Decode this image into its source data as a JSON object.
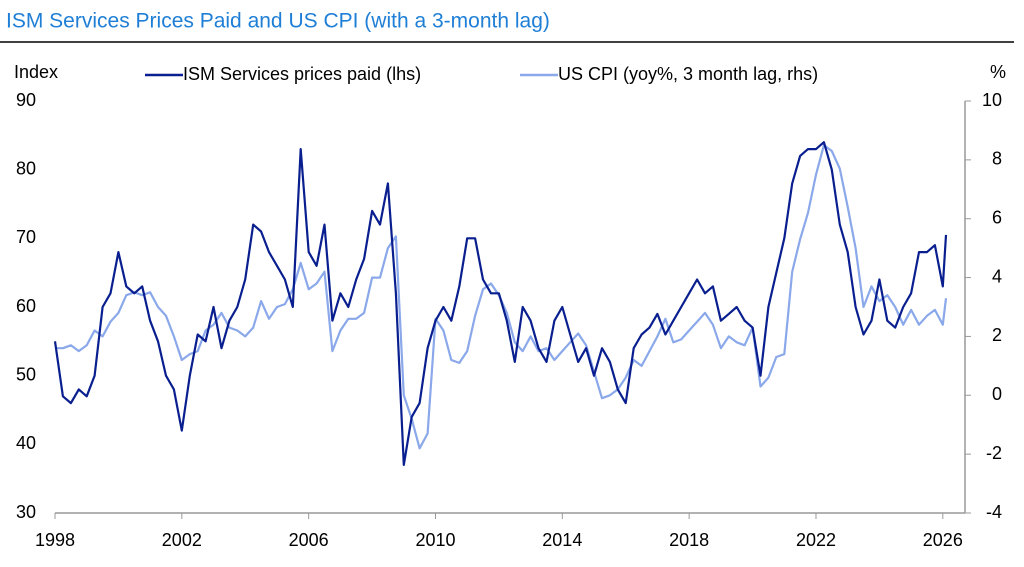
{
  "chart_data": {
    "type": "line",
    "title": "ISM Services Prices Paid and US CPI (with a 3-month lag)",
    "y_label": "Index",
    "y2_label": "%",
    "x": [
      1998,
      1998.25,
      1998.5,
      1998.75,
      1999,
      1999.25,
      1999.5,
      1999.75,
      2000,
      2000.25,
      2000.5,
      2000.75,
      2001,
      2001.25,
      2001.5,
      2001.75,
      2002,
      2002.25,
      2002.5,
      2002.75,
      2003,
      2003.25,
      2003.5,
      2003.75,
      2004,
      2004.25,
      2004.5,
      2004.75,
      2005,
      2005.25,
      2005.5,
      2005.75,
      2006,
      2006.25,
      2006.5,
      2006.75,
      2007,
      2007.25,
      2007.5,
      2007.75,
      2008,
      2008.25,
      2008.5,
      2008.75,
      2009,
      2009.25,
      2009.5,
      2009.75,
      2010,
      2010.25,
      2010.5,
      2010.75,
      2011,
      2011.25,
      2011.5,
      2011.75,
      2012,
      2012.25,
      2012.5,
      2012.75,
      2013,
      2013.25,
      2013.5,
      2013.75,
      2014,
      2014.25,
      2014.5,
      2014.75,
      2015,
      2015.25,
      2015.5,
      2015.75,
      2016,
      2016.25,
      2016.5,
      2016.75,
      2017,
      2017.25,
      2017.5,
      2017.75,
      2018,
      2018.25,
      2018.5,
      2018.75,
      2019,
      2019.25,
      2019.5,
      2019.75,
      2020,
      2020.25,
      2020.5,
      2020.75,
      2021,
      2021.25,
      2021.5,
      2021.75,
      2022,
      2022.25,
      2022.5,
      2022.75,
      2023,
      2023.25,
      2023.5,
      2023.75,
      2024,
      2024.25,
      2024.5,
      2024.75,
      2025,
      2025.25,
      2025.5,
      2025.75,
      2026,
      2026.1
    ],
    "series": [
      {
        "name": "ISM Services prices paid (lhs)",
        "color": "#0a1f8f",
        "axis": "y",
        "values": [
          55,
          47,
          46,
          48,
          47,
          50,
          60,
          62,
          68,
          63,
          62,
          63,
          58,
          55,
          50,
          48,
          42,
          50,
          56,
          55,
          60,
          54,
          58,
          60,
          64,
          72,
          71,
          68,
          66,
          64,
          60,
          83,
          68,
          66,
          72,
          58,
          62,
          60,
          64,
          67,
          74,
          72,
          78,
          62,
          37,
          44,
          46,
          54,
          58,
          60,
          58,
          63,
          70,
          70,
          64,
          62,
          62,
          58,
          52,
          60,
          58,
          54,
          52,
          58,
          60,
          56,
          52,
          54,
          50,
          54,
          52,
          48,
          46,
          54,
          56,
          57,
          59,
          56,
          58,
          60,
          62,
          64,
          62,
          63,
          58,
          59,
          60,
          58,
          57,
          50,
          60,
          65,
          70,
          78,
          82,
          83,
          83,
          84,
          80,
          72,
          68,
          60,
          56,
          58,
          64,
          58,
          57,
          60,
          62,
          68,
          68,
          69,
          63,
          70.5
        ]
      },
      {
        "name": "US CPI (yoy%, 3 month lag, rhs)",
        "color": "#8aa8ea",
        "axis": "y2",
        "values": [
          1.6,
          1.6,
          1.7,
          1.5,
          1.7,
          2.2,
          2.0,
          2.5,
          2.8,
          3.4,
          3.5,
          3.4,
          3.5,
          3.0,
          2.7,
          2.0,
          1.2,
          1.4,
          1.5,
          2.2,
          2.4,
          2.8,
          2.3,
          2.2,
          2.0,
          2.3,
          3.2,
          2.6,
          3.0,
          3.1,
          3.6,
          4.5,
          3.6,
          3.8,
          4.2,
          1.5,
          2.2,
          2.6,
          2.6,
          2.8,
          4.0,
          4.0,
          5.0,
          5.4,
          0.0,
          -0.8,
          -1.8,
          -1.3,
          2.6,
          2.2,
          1.2,
          1.1,
          1.5,
          2.7,
          3.6,
          3.8,
          3.4,
          2.8,
          1.8,
          1.5,
          2.0,
          1.5,
          1.6,
          1.2,
          1.5,
          1.8,
          2.1,
          1.7,
          0.8,
          -0.1,
          0.0,
          0.2,
          0.6,
          1.2,
          1.0,
          1.5,
          2.0,
          2.6,
          1.8,
          1.9,
          2.2,
          2.5,
          2.8,
          2.4,
          1.6,
          2.0,
          1.8,
          1.7,
          2.3,
          0.3,
          0.6,
          1.3,
          1.4,
          4.2,
          5.3,
          6.2,
          7.5,
          8.5,
          8.3,
          7.7,
          6.4,
          5.0,
          3.0,
          3.7,
          3.2,
          3.4,
          3.0,
          2.4,
          2.9,
          2.4,
          2.7,
          2.9,
          2.4,
          3.3
        ]
      }
    ],
    "xlim": [
      1998,
      2026.7
    ],
    "xticks": [
      1998,
      2002,
      2006,
      2010,
      2014,
      2018,
      2022,
      2026
    ],
    "ylim": [
      30,
      90
    ],
    "yticks": [
      30,
      40,
      50,
      60,
      70,
      80,
      90
    ],
    "y2lim": [
      -4,
      10
    ],
    "y2ticks": [
      -4,
      -2,
      0,
      2,
      4,
      6,
      8,
      10
    ]
  }
}
